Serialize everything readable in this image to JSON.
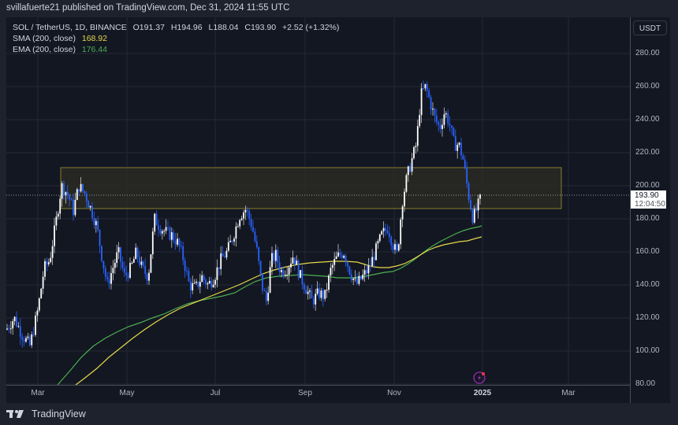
{
  "header": {
    "published": "svillafuerte21 published on TradingView.com, Dec 31, 2024 11:55 UTC"
  },
  "legend": {
    "symbol": "SOL / TetherUS, 1D, BINANCE",
    "open": "O191.37",
    "high": "H194.96",
    "low": "L188.04",
    "close": "C193.90",
    "change": "+2.52 (+1.32%)",
    "sma_label": "SMA (200, close)",
    "sma_value": "168.92",
    "ema_label": "EMA (200, close)",
    "ema_value": "176.44"
  },
  "price_axis": {
    "currency": "USDT",
    "labels": [
      "280.00",
      "260.00",
      "240.00",
      "220.00",
      "200.00",
      "180.00",
      "160.00",
      "140.00",
      "120.00",
      "100.00",
      "80.00"
    ],
    "current_price": "193.90",
    "countdown": "12:04:50"
  },
  "time_axis": {
    "labels": [
      "Mar",
      "May",
      "Jul",
      "Sep",
      "Nov",
      "2025",
      "Mar"
    ]
  },
  "footer": {
    "brand": "TradingView"
  },
  "colors": {
    "background": "#131722",
    "up_candle": "#ffffff",
    "down_candle": "#2962ff",
    "sma": "#e5d84a",
    "ema": "#4caf50",
    "zone_border": "#8a7d2e",
    "zone_fill": "#2a2a22"
  },
  "chart_data": {
    "type": "candlestick",
    "title": "SOL / TetherUS, 1D, BINANCE",
    "xlabel": "",
    "ylabel": "USDT",
    "ylim": [
      80,
      280
    ],
    "y_ticks": [
      80,
      100,
      120,
      140,
      160,
      180,
      200,
      220,
      240,
      260,
      280
    ],
    "x_ticks": [
      "Mar",
      "May",
      "Jul",
      "Sep",
      "Nov",
      "2025",
      "Mar"
    ],
    "grid": true,
    "last": {
      "open": 191.37,
      "high": 194.96,
      "low": 188.04,
      "close": 193.9,
      "change": 2.52,
      "change_pct": 1.32
    },
    "indicators": [
      {
        "name": "SMA (200, close)",
        "value": 168.92,
        "color": "#e5d84a"
      },
      {
        "name": "EMA (200, close)",
        "value": 176.44,
        "color": "#4caf50"
      }
    ],
    "zone": {
      "top": 211,
      "bottom": 186,
      "start": "early Mar 2024",
      "end": "mid Feb 2025"
    },
    "series": [
      {
        "name": "SOL close (approx.)",
        "x": [
          "Feb",
          "Mar",
          "mid-Mar",
          "Apr",
          "mid-Apr",
          "May",
          "mid-May",
          "Jun",
          "mid-Jun",
          "Jul",
          "mid-Jul",
          "Aug",
          "early-Aug",
          "Sep",
          "mid-Sep",
          "Oct",
          "mid-Oct",
          "Nov",
          "mid-Nov",
          "late-Nov",
          "Dec",
          "mid-Dec",
          "late-Dec",
          "Dec 31"
        ],
        "values": [
          105,
          130,
          200,
          195,
          145,
          140,
          165,
          145,
          135,
          140,
          185,
          175,
          140,
          135,
          135,
          155,
          150,
          165,
          230,
          255,
          235,
          215,
          185,
          193.9
        ]
      },
      {
        "name": "SMA 200 (approx.)",
        "x": [
          "Mar",
          "May",
          "Jul",
          "Sep",
          "Nov",
          "Dec 31"
        ],
        "values": [
          78,
          115,
          140,
          150,
          155,
          168.9
        ]
      },
      {
        "name": "EMA 200 (approx.)",
        "x": [
          "Mar",
          "May",
          "Jul",
          "Sep",
          "Nov",
          "Dec 31"
        ],
        "values": [
          90,
          125,
          136,
          143,
          152,
          176.4
        ]
      }
    ]
  }
}
